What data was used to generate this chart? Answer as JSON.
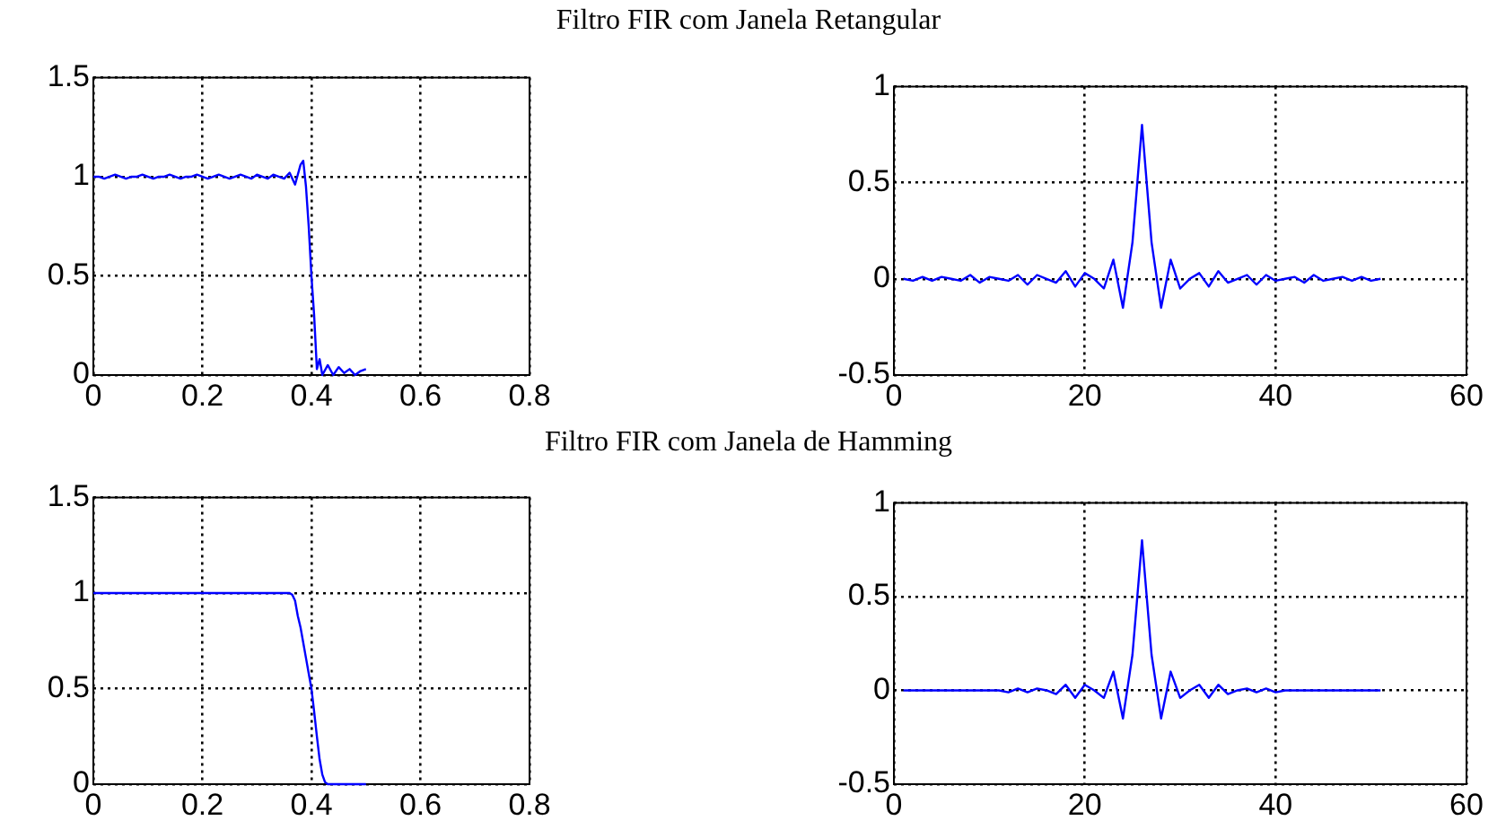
{
  "chart_data": [
    {
      "type": "line",
      "title": "Filtro FIR com Janela Retangular",
      "marker": "none",
      "grid": true,
      "color": "#0000ff",
      "x": [
        0,
        0.01,
        0.02,
        0.03,
        0.04,
        0.05,
        0.06,
        0.07,
        0.08,
        0.09,
        0.1,
        0.11,
        0.12,
        0.13,
        0.14,
        0.15,
        0.16,
        0.17,
        0.18,
        0.19,
        0.2,
        0.21,
        0.22,
        0.23,
        0.24,
        0.25,
        0.26,
        0.27,
        0.28,
        0.29,
        0.3,
        0.31,
        0.32,
        0.33,
        0.34,
        0.35,
        0.36,
        0.37,
        0.38,
        0.385,
        0.39,
        0.395,
        0.4,
        0.405,
        0.41,
        0.415,
        0.42,
        0.43,
        0.44,
        0.45,
        0.46,
        0.47,
        0.48,
        0.49,
        0.5
      ],
      "values": [
        1,
        1,
        0.99,
        1,
        1.01,
        1,
        0.99,
        1,
        1,
        1.01,
        1,
        0.99,
        1,
        1,
        1.01,
        1,
        0.99,
        1,
        1,
        1.01,
        1,
        0.99,
        1,
        1.01,
        1,
        0.99,
        1,
        1.01,
        1,
        0.99,
        1.01,
        1,
        0.99,
        1.01,
        1,
        0.99,
        1.02,
        0.96,
        1.06,
        1.08,
        0.95,
        0.75,
        0.5,
        0.3,
        0.03,
        0.08,
        0,
        0.05,
        0,
        0.04,
        0.01,
        0.03,
        0,
        0.02,
        0.03
      ],
      "xlim": [
        0,
        0.8
      ],
      "xticks": [
        0,
        0.2,
        0.4,
        0.6,
        0.8
      ],
      "ylim": [
        0,
        1.5
      ],
      "yticks": [
        0,
        0.5,
        1,
        1.5
      ]
    },
    {
      "type": "line",
      "marker": "none",
      "grid": true,
      "color": "#0000ff",
      "x": [
        1,
        2,
        3,
        4,
        5,
        6,
        7,
        8,
        9,
        10,
        11,
        12,
        13,
        14,
        15,
        16,
        17,
        18,
        19,
        20,
        21,
        22,
        23,
        24,
        25,
        26,
        27,
        28,
        29,
        30,
        31,
        32,
        33,
        34,
        35,
        36,
        37,
        38,
        39,
        40,
        41,
        42,
        43,
        44,
        45,
        46,
        47,
        48,
        49,
        50,
        51
      ],
      "values": [
        0,
        -0.01,
        0.01,
        -0.01,
        0.01,
        0,
        -0.01,
        0.02,
        -0.02,
        0.01,
        0,
        -0.01,
        0.02,
        -0.03,
        0.02,
        0,
        -0.02,
        0.04,
        -0.04,
        0.03,
        0,
        -0.05,
        0.1,
        -0.15,
        0.19,
        0.8,
        0.19,
        -0.15,
        0.1,
        -0.05,
        0,
        0.03,
        -0.04,
        0.04,
        -0.02,
        0,
        0.02,
        -0.03,
        0.02,
        -0.01,
        0,
        0.01,
        -0.02,
        0.02,
        -0.01,
        0,
        0.01,
        -0.01,
        0.01,
        -0.01,
        0
      ],
      "xlim": [
        0,
        60
      ],
      "xticks": [
        0,
        20,
        40,
        60
      ],
      "ylim": [
        -0.5,
        1
      ],
      "yticks": [
        -0.5,
        0,
        0.5,
        1
      ]
    },
    {
      "type": "line",
      "title": "Filtro FIR com Janela de Hamming",
      "marker": "none",
      "grid": true,
      "color": "#0000ff",
      "x": [
        0,
        0.1,
        0.2,
        0.3,
        0.36,
        0.365,
        0.37,
        0.375,
        0.38,
        0.385,
        0.39,
        0.395,
        0.4,
        0.405,
        0.41,
        0.415,
        0.42,
        0.425,
        0.43,
        0.5
      ],
      "values": [
        1,
        1,
        1,
        1,
        1,
        0.99,
        0.96,
        0.88,
        0.82,
        0.74,
        0.66,
        0.58,
        0.5,
        0.38,
        0.25,
        0.13,
        0.05,
        0.01,
        0,
        0
      ],
      "xlim": [
        0,
        0.8
      ],
      "xticks": [
        0,
        0.2,
        0.4,
        0.6,
        0.8
      ],
      "ylim": [
        0,
        1.5
      ],
      "yticks": [
        0,
        0.5,
        1,
        1.5
      ]
    },
    {
      "type": "line",
      "marker": "none",
      "grid": true,
      "color": "#0000ff",
      "x": [
        1,
        2,
        3,
        4,
        5,
        6,
        7,
        8,
        9,
        10,
        11,
        12,
        13,
        14,
        15,
        16,
        17,
        18,
        19,
        20,
        21,
        22,
        23,
        24,
        25,
        26,
        27,
        28,
        29,
        30,
        31,
        32,
        33,
        34,
        35,
        36,
        37,
        38,
        39,
        40,
        41,
        42,
        43,
        44,
        45,
        46,
        47,
        48,
        49,
        50,
        51
      ],
      "values": [
        0,
        0,
        0,
        0,
        0,
        0,
        0,
        0,
        0,
        0,
        0,
        -0.01,
        0.01,
        -0.01,
        0.01,
        0,
        -0.02,
        0.03,
        -0.04,
        0.03,
        0,
        -0.04,
        0.1,
        -0.15,
        0.19,
        0.8,
        0.19,
        -0.15,
        0.1,
        -0.04,
        0,
        0.03,
        -0.04,
        0.03,
        -0.02,
        0,
        0.01,
        -0.01,
        0.01,
        -0.01,
        0,
        0,
        0,
        0,
        0,
        0,
        0,
        0,
        0,
        0,
        0
      ],
      "xlim": [
        0,
        60
      ],
      "xticks": [
        0,
        20,
        40,
        60
      ],
      "ylim": [
        -0.5,
        1
      ],
      "yticks": [
        -0.5,
        0,
        0.5,
        1
      ]
    }
  ]
}
